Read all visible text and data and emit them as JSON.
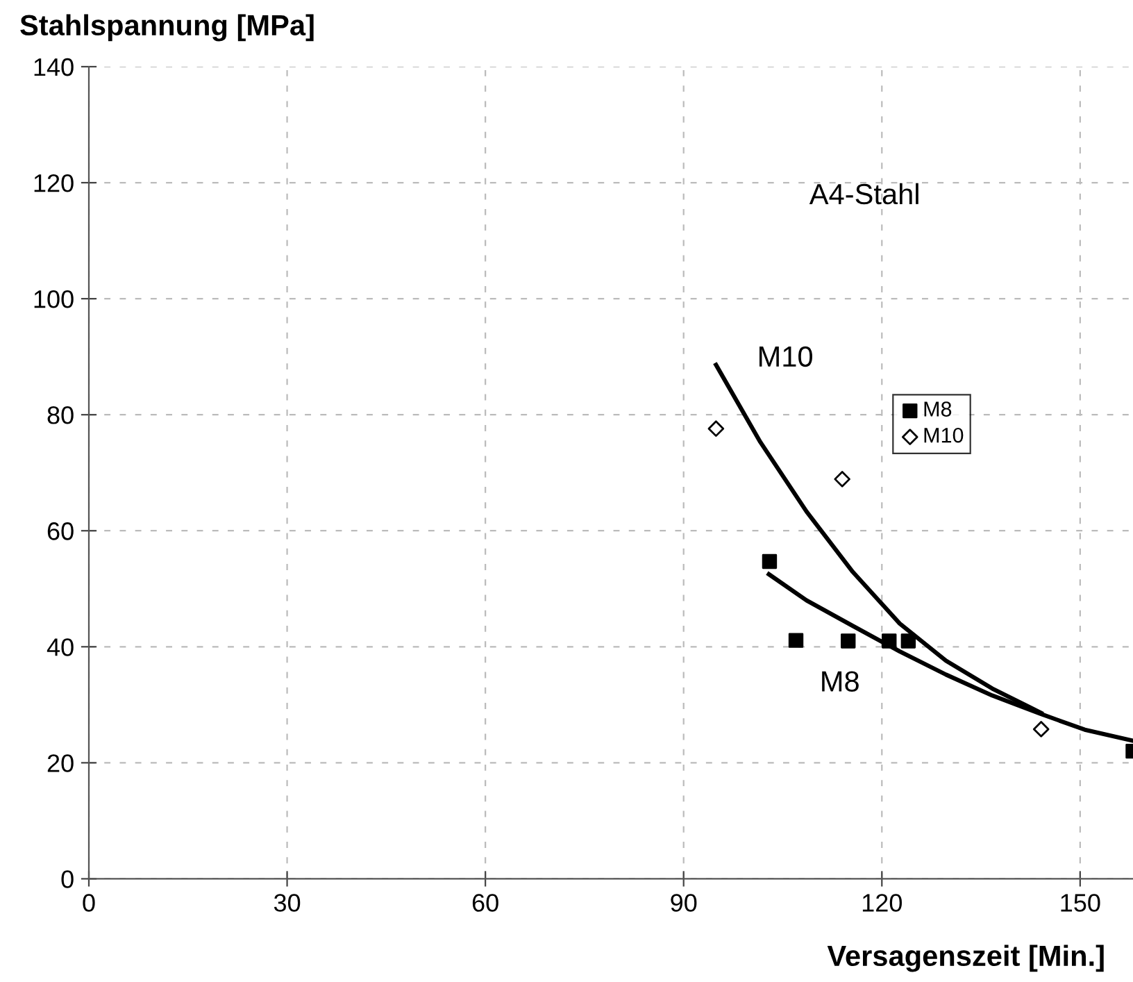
{
  "chart_data": {
    "type": "scatter",
    "xlabel": "Versagenszeit [Min.]",
    "ylabel": "Stahlspannung [MPa]",
    "xlim": [
      0,
      158
    ],
    "ylim": [
      0,
      140
    ],
    "xticks": [
      0,
      30,
      60,
      90,
      120,
      150
    ],
    "yticks": [
      0,
      20,
      40,
      60,
      80,
      100,
      120,
      140
    ],
    "grid": true,
    "legend": "right",
    "series": [
      {
        "name": "M8",
        "marker": "square",
        "color": "#000000",
        "x": [
          103.0,
          107.0,
          114.9,
          121.1,
          124.0,
          158
        ],
        "values": [
          54.7,
          41.1,
          41,
          41,
          41,
          22
        ]
      },
      {
        "name": "M10",
        "marker": "diamond",
        "color": "#000000",
        "x": [
          94.9,
          114.0,
          144.1
        ],
        "values": [
          77.6,
          68.9,
          25.8
        ]
      },
      {
        "type": "line",
        "color": "#000000",
        "x": [
          94.9,
          101.6,
          108.6,
          115.6,
          122.7,
          129.7,
          136.7,
          144.1
        ],
        "values": [
          88.6,
          75.3,
          63.3,
          52.9,
          44.0,
          37.6,
          32.8,
          28.6
        ]
      },
      {
        "type": "line",
        "color": "#000000",
        "x": [
          102.9,
          108.6,
          115.6,
          122.7,
          129.7,
          136.7,
          144.1,
          150.7,
          158
        ],
        "values": [
          52.5,
          48.0,
          43.6,
          39.2,
          35.2,
          31.6,
          28.4,
          25.7,
          23.8
        ]
      }
    ],
    "annotations": [
      "M10",
      "M8",
      "A4-Stahl"
    ]
  }
}
